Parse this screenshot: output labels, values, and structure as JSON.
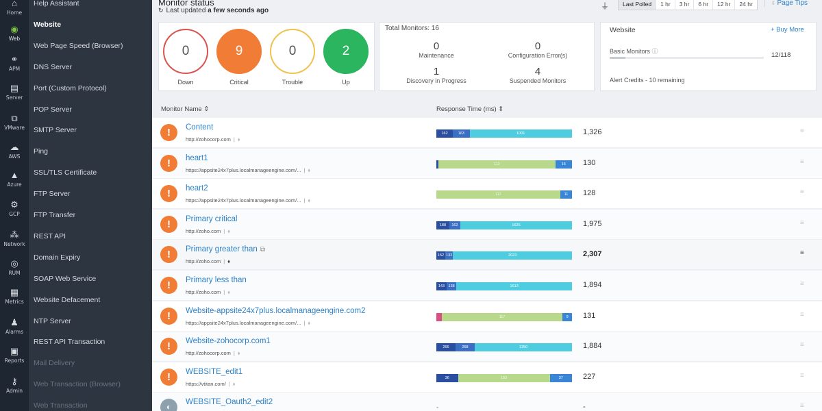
{
  "rail": [
    {
      "icon": "home-icon",
      "glyph": "⌂",
      "label": "Home"
    },
    {
      "icon": "globe-icon",
      "glyph": "◉",
      "label": "Web",
      "active": true
    },
    {
      "icon": "apm-icon",
      "glyph": "⚭",
      "label": "APM"
    },
    {
      "icon": "server-icon",
      "glyph": "▤",
      "label": "Server"
    },
    {
      "icon": "vmware-icon",
      "glyph": "⧉",
      "label": "VMware"
    },
    {
      "icon": "aws-icon",
      "glyph": "☁",
      "label": "AWS"
    },
    {
      "icon": "azure-icon",
      "glyph": "▲",
      "label": "Azure"
    },
    {
      "icon": "gcp-icon",
      "glyph": "⚙",
      "label": "GCP"
    },
    {
      "icon": "network-icon",
      "glyph": "⁂",
      "label": "Network"
    },
    {
      "icon": "rum-icon",
      "glyph": "◎",
      "label": "RUM"
    },
    {
      "icon": "metrics-icon",
      "glyph": "▦",
      "label": "Metrics"
    },
    {
      "icon": "alarms-icon",
      "glyph": "♟",
      "label": "Alarms"
    },
    {
      "icon": "reports-icon",
      "glyph": "▣",
      "label": "Reports"
    },
    {
      "icon": "admin-icon",
      "glyph": "⚷",
      "label": "Admin"
    }
  ],
  "submenu": [
    {
      "label": "Help Assistant"
    },
    {
      "label": "Website",
      "active": true
    },
    {
      "label": "Web Page Speed (Browser)"
    },
    {
      "label": "DNS Server"
    },
    {
      "label": "Port (Custom Protocol)"
    },
    {
      "label": "POP Server"
    },
    {
      "label": "SMTP Server"
    },
    {
      "label": "Ping"
    },
    {
      "label": "SSL/TLS Certificate"
    },
    {
      "label": "FTP Server"
    },
    {
      "label": "FTP Transfer"
    },
    {
      "label": "REST API"
    },
    {
      "label": "Domain Expiry"
    },
    {
      "label": "SOAP Web Service"
    },
    {
      "label": "Website Defacement"
    },
    {
      "label": "NTP Server"
    },
    {
      "label": "REST API Transaction"
    },
    {
      "label": "Mail Delivery",
      "dim": true
    },
    {
      "label": "Web Transaction (Browser)",
      "dim": true
    },
    {
      "label": "Web Transaction",
      "dim": true
    }
  ],
  "header": {
    "title": "Monitor status",
    "updated_prefix": "Last updated",
    "updated_value": "a few seconds ago",
    "time_tabs": [
      "Last Polled",
      "1 hr",
      "3 hr",
      "6 hr",
      "12 hr",
      "24 hr"
    ],
    "active_tab": "Last Polled",
    "page_tips": "Page Tips"
  },
  "status_summary": [
    {
      "value": "0",
      "label": "Down",
      "color": "#d9534f"
    },
    {
      "value": "9",
      "label": "Critical",
      "color": "#f07c35"
    },
    {
      "value": "0",
      "label": "Trouble",
      "color": "#f0c24f"
    },
    {
      "value": "2",
      "label": "Up",
      "color": "#2bb55f"
    }
  ],
  "totals": {
    "title": "Total Monitors: 16",
    "stats": [
      {
        "value": "0",
        "label": "Maintenance"
      },
      {
        "value": "0",
        "label": "Configuration Error(s)"
      },
      {
        "value": "1",
        "label": "Discovery in Progress"
      },
      {
        "value": "4",
        "label": "Suspended Monitors"
      }
    ]
  },
  "website_card": {
    "title": "Website",
    "buy_more": "+ Buy More",
    "basic_monitors_label": "Basic Monitors",
    "basic_monitors_count": "12/118",
    "basic_monitors_fraction": 0.1,
    "alert_credits": "Alert Credits - 10 remaining"
  },
  "table": {
    "col_name": "Monitor Name",
    "col_response": "Response Time (ms)",
    "bar_scale_max": 2307,
    "rows": [
      {
        "name": "Content",
        "url": "http://zohocorp.com",
        "status": "critical",
        "response": "1,326",
        "segments": [
          {
            "v": 162,
            "label": "162",
            "color": "#2b4fa0"
          },
          {
            "v": 163,
            "label": "163",
            "color": "#3a6fc4"
          },
          {
            "v": 1001,
            "label": "1001",
            "color": "#4ecde0"
          }
        ]
      },
      {
        "name": "heart1",
        "url": "https://appsite24x7plus.localmanageengine.com/...",
        "status": "critical",
        "response": "130",
        "segments": [
          {
            "v": 2,
            "label": "",
            "color": "#2b4fa0"
          },
          {
            "v": 112,
            "label": "112",
            "color": "#b8d98b"
          },
          {
            "v": 16,
            "label": "16",
            "color": "#3a86d6"
          }
        ]
      },
      {
        "name": "heart2",
        "url": "https://appsite24x7plus.localmanageengine.com/...",
        "status": "critical",
        "response": "128",
        "segments": [
          {
            "v": 117,
            "label": "117",
            "color": "#b8d98b"
          },
          {
            "v": 11,
            "label": "11",
            "color": "#3a86d6"
          }
        ]
      },
      {
        "name": "Primary critical",
        "url": "http://zoho.com",
        "status": "critical",
        "response": "1,975",
        "segments": [
          {
            "v": 188,
            "label": "188",
            "color": "#2b4fa0"
          },
          {
            "v": 162,
            "label": "162",
            "color": "#3a6fc4"
          },
          {
            "v": 1625,
            "label": "1625",
            "color": "#4ecde0"
          }
        ]
      },
      {
        "name": "Primary greater than",
        "url": "http://zoho.com",
        "status": "critical",
        "response": "2,307",
        "highlight": true,
        "segments": [
          {
            "v": 152,
            "label": "152",
            "color": "#2b4fa0"
          },
          {
            "v": 132,
            "label": "132",
            "color": "#3a6fc4"
          },
          {
            "v": 2023,
            "label": "2023",
            "color": "#4ecde0"
          }
        ]
      },
      {
        "name": "Primary less than",
        "url": "http://zoho.com",
        "status": "critical",
        "response": "1,894",
        "segments": [
          {
            "v": 143,
            "label": "143",
            "color": "#2b4fa0"
          },
          {
            "v": 138,
            "label": "138",
            "color": "#3a6fc4"
          },
          {
            "v": 1613,
            "label": "1613",
            "color": "#4ecde0"
          }
        ]
      },
      {
        "name": "Website-appsite24x7plus.localmanageengine.com2",
        "url": "https://appsite24x7plus.localmanageengine.com/...",
        "status": "critical",
        "response": "131",
        "segments": [
          {
            "v": 5,
            "label": "",
            "color": "#d94f86"
          },
          {
            "v": 117,
            "label": "117",
            "color": "#b8d98b"
          },
          {
            "v": 9,
            "label": "9",
            "color": "#3a86d6"
          }
        ]
      },
      {
        "name": "Website-zohocorp.com1",
        "url": "http://zohocorp.com",
        "status": "critical",
        "response": "1,884",
        "segments": [
          {
            "v": 266,
            "label": "266",
            "color": "#2b4fa0"
          },
          {
            "v": 268,
            "label": "268",
            "color": "#3a6fc4"
          },
          {
            "v": 1350,
            "label": "1350",
            "color": "#4ecde0"
          }
        ]
      },
      {
        "name": "WEBSITE_edit1",
        "url": "https://vtitan.com/",
        "status": "critical",
        "response": "227",
        "segments": [
          {
            "v": 36,
            "label": "36",
            "color": "#2b4fa0"
          },
          {
            "v": 153,
            "label": "153",
            "color": "#b8d98b"
          },
          {
            "v": 37,
            "label": "37",
            "color": "#3a86d6"
          }
        ]
      },
      {
        "name": "WEBSITE_Oauth2_edit2",
        "url": "",
        "status": "grey",
        "response": "-",
        "segments": []
      }
    ]
  }
}
